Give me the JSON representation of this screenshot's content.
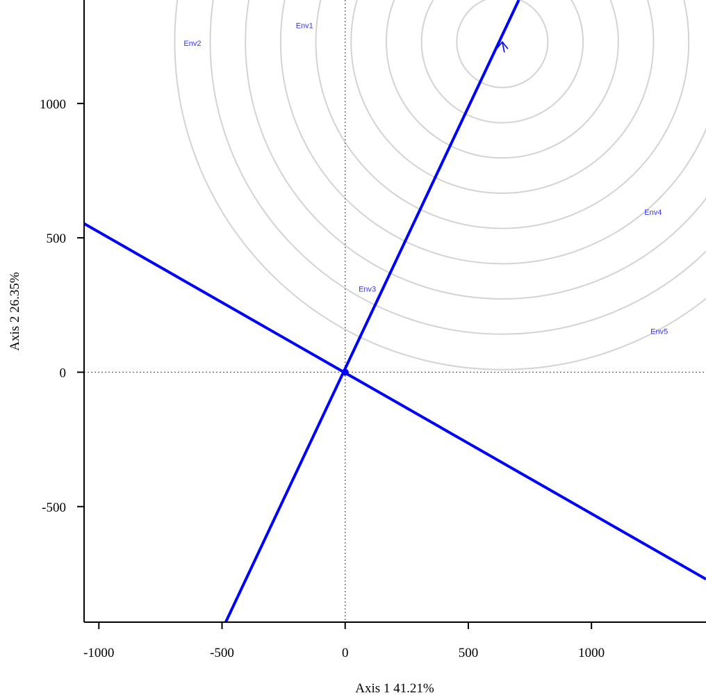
{
  "chart_data": {
    "type": "scatter",
    "title": "",
    "xlabel": "Axis 1  41.21%",
    "ylabel": "Axis 2  26.35%",
    "xlim": [
      -1060,
      1465
    ],
    "ylim": [
      -930,
      1385
    ],
    "x_ticks": [
      {
        "value": -1000,
        "label": "-1000"
      },
      {
        "value": -500,
        "label": "-500"
      },
      {
        "value": 0,
        "label": "0"
      },
      {
        "value": 500,
        "label": "500"
      },
      {
        "value": 1000,
        "label": "1000"
      }
    ],
    "y_ticks": [
      {
        "value": -500,
        "label": "-500"
      },
      {
        "value": 0,
        "label": "0"
      },
      {
        "value": 500,
        "label": "500"
      },
      {
        "value": 1000,
        "label": "1000"
      }
    ],
    "points": [
      {
        "label": "Env1",
        "x": -165,
        "y": 1288
      },
      {
        "label": "Env2",
        "x": -620,
        "y": 1222
      },
      {
        "label": "Env3",
        "x": 90,
        "y": 308
      },
      {
        "label": "Env4",
        "x": 1250,
        "y": 593
      },
      {
        "label": "Env5",
        "x": 1275,
        "y": 150
      }
    ],
    "ideal_point": {
      "x": 638,
      "y": 1229
    },
    "concentric_circles": {
      "center": {
        "x": 638,
        "y": 1229
      },
      "radii": [
        185,
        328,
        471,
        614,
        757,
        900,
        1043,
        1186,
        1330
      ]
    },
    "lines": [
      {
        "from": {
          "x": -485,
          "y": -930
        },
        "to": {
          "x": 705,
          "y": 1385
        }
      },
      {
        "from": {
          "x": -1060,
          "y": 553
        },
        "to": {
          "x": 1465,
          "y": -770
        }
      }
    ],
    "grid": false,
    "legend": "none",
    "colors": {
      "lines": "#0000ff",
      "labels": "#3333ff",
      "circles": "#d3d3d3",
      "reference": "#555555"
    }
  }
}
